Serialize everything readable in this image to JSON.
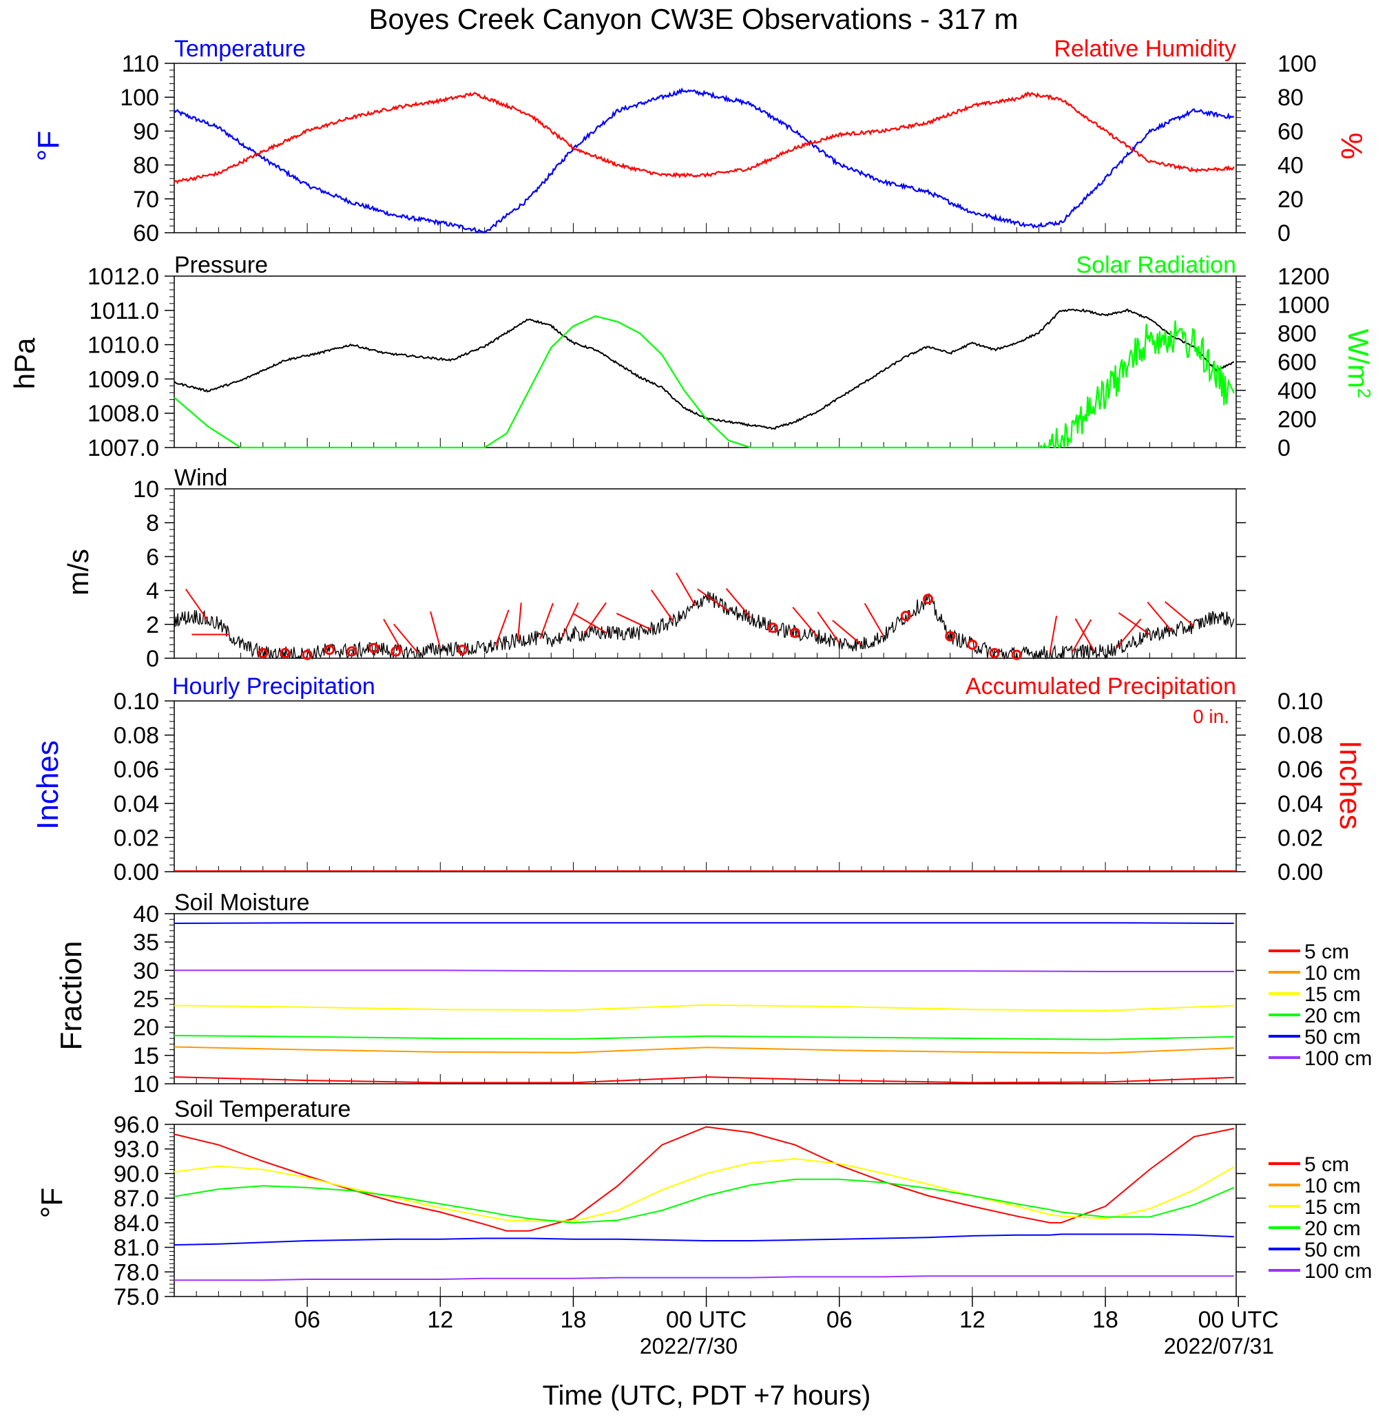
{
  "title": "Boyes Creek Canyon CW3E Observations - 317 m",
  "xaxis": {
    "label": "Time (UTC, PDT +7 hours)",
    "ticks": [
      "06",
      "12",
      "18",
      "00 UTC",
      "06",
      "12",
      "18",
      "00 UTC"
    ],
    "dates": [
      "2022/7/30",
      "2022/07/31"
    ]
  },
  "panels": {
    "temp_rh": {
      "left_title": "Temperature",
      "right_title": "Relative Humidity",
      "left_unit": "°F",
      "right_unit": "%",
      "left_ticks": [
        "110",
        "100",
        "90",
        "80",
        "70",
        "60"
      ],
      "right_ticks": [
        "100",
        "80",
        "60",
        "40",
        "20",
        "0"
      ]
    },
    "pressure_solar": {
      "left_title": "Pressure",
      "right_title": "Solar Radiation",
      "left_unit": "hPa",
      "right_unit": "W/m",
      "left_ticks": [
        "1012.0",
        "1011.0",
        "1010.0",
        "1009.0",
        "1008.0",
        "1007.0"
      ],
      "right_ticks": [
        "1200",
        "1000",
        "800",
        "600",
        "400",
        "200",
        "0"
      ]
    },
    "wind": {
      "title": "Wind",
      "unit": "m/s",
      "ticks": [
        "10",
        "8",
        "6",
        "4",
        "2",
        "0"
      ]
    },
    "precip": {
      "left_title": "Hourly Precipitation",
      "right_title": "Accumulated Precipitation",
      "total": "0 in.",
      "left_unit": "Inches",
      "right_unit": "Inches",
      "ticks": [
        "0.10",
        "0.08",
        "0.06",
        "0.04",
        "0.02",
        "0.00"
      ]
    },
    "soil_moisture": {
      "title": "Soil Moisture",
      "unit": "Fraction",
      "ticks": [
        "40",
        "35",
        "30",
        "25",
        "20",
        "15",
        "10"
      ],
      "legend": [
        "5 cm",
        "10 cm",
        "15 cm",
        "20 cm",
        "50 cm",
        "100 cm"
      ]
    },
    "soil_temp": {
      "title": "Soil Temperature",
      "unit": "°F",
      "ticks": [
        "96.0",
        "93.0",
        "90.0",
        "87.0",
        "84.0",
        "81.0",
        "78.0",
        "75.0"
      ],
      "legend": [
        "5 cm",
        "10 cm",
        "15 cm",
        "20 cm",
        "50 cm",
        "100 cm"
      ]
    }
  },
  "colors": {
    "temperature": "#0000ff",
    "humidity": "#ff0000",
    "pressure": "#000000",
    "solar": "#00ff00",
    "wind": "#000000",
    "barbs": "#ff0000",
    "soil": [
      "#ff0000",
      "#ff9900",
      "#ffff00",
      "#00ff00",
      "#0000ff",
      "#9933ff"
    ]
  },
  "chart_data": [
    {
      "type": "line",
      "x_hours_since_start": [
        0,
        2,
        4,
        6,
        8,
        10,
        12,
        13.5,
        14,
        16,
        18,
        20,
        22,
        23,
        24,
        26,
        28,
        30,
        32,
        34,
        36,
        38,
        38.5,
        40,
        42,
        44,
        46,
        47.8
      ],
      "series": [
        {
          "name": "Temperature",
          "axis": "left",
          "ylim": [
            60,
            110
          ],
          "values": [
            96,
            91,
            82,
            74,
            69,
            65,
            63,
            61,
            60,
            70,
            85,
            96,
            100,
            102,
            101,
            98,
            90,
            80,
            75,
            72,
            66,
            63,
            62,
            63,
            76,
            90,
            96,
            94
          ]
        },
        {
          "name": "Relative Humidity",
          "axis": "right",
          "ylim": [
            0,
            100
          ],
          "values": [
            30,
            35,
            48,
            60,
            68,
            74,
            78,
            82,
            80,
            70,
            50,
            40,
            34,
            34,
            34,
            38,
            50,
            58,
            60,
            65,
            75,
            79,
            82,
            79,
            60,
            42,
            37,
            38
          ]
        }
      ]
    },
    {
      "type": "line",
      "x_hours_since_start": [
        0,
        1.5,
        3,
        5,
        6.5,
        8,
        9.5,
        11,
        12.5,
        14,
        15,
        16,
        17,
        18,
        19,
        20,
        21,
        22,
        23,
        24,
        25,
        26,
        27,
        28,
        29,
        30,
        31,
        32,
        33,
        34,
        35,
        36,
        37,
        38,
        39,
        40,
        41,
        42,
        43,
        44,
        45,
        46,
        47,
        47.8
      ],
      "series": [
        {
          "name": "Pressure",
          "axis": "left",
          "ylim": [
            1007.0,
            1012.0
          ],
          "values": [
            1008.9,
            1008.65,
            1008.95,
            1009.55,
            1009.75,
            1010.0,
            1009.75,
            1009.65,
            1009.55,
            1009.95,
            1010.35,
            1010.75,
            1010.55,
            1010.05,
            1009.85,
            1009.45,
            1009.05,
            1008.75,
            1008.15,
            1007.85,
            1007.75,
            1007.65,
            1007.55,
            1007.75,
            1008.05,
            1008.45,
            1008.85,
            1009.25,
            1009.65,
            1009.95,
            1009.75,
            1010.05,
            1009.85,
            1010.05,
            1010.35,
            1011.0,
            1011.0,
            1010.85,
            1011.0,
            1010.75,
            1010.25,
            1009.95,
            1009.25,
            1009.5
          ]
        },
        {
          "name": "Solar Radiation",
          "axis": "right",
          "ylim": [
            0,
            1200
          ],
          "values": [
            350,
            150,
            0,
            0,
            0,
            0,
            0,
            0,
            0,
            0,
            100,
            400,
            700,
            850,
            920,
            880,
            800,
            650,
            400,
            200,
            50,
            0,
            0,
            0,
            0,
            0,
            0,
            0,
            0,
            0,
            0,
            0,
            0,
            0,
            0,
            200,
            350,
            500,
            700,
            900,
            900,
            850,
            650,
            380
          ]
        }
      ]
    },
    {
      "type": "line",
      "title": "Wind",
      "x_hours_since_start": [
        0,
        1,
        2,
        3,
        4,
        5,
        6,
        7,
        8,
        9,
        10,
        11,
        12,
        13,
        14,
        15,
        16,
        17,
        18,
        19,
        20,
        21,
        22,
        23,
        24,
        25,
        26,
        27,
        28,
        29,
        30,
        31,
        32,
        33,
        34,
        35,
        36,
        37,
        38,
        39,
        40,
        41,
        42,
        43,
        44,
        45,
        46,
        47,
        47.8
      ],
      "series": [
        {
          "name": "Wind speed",
          "values": [
            2.3,
            2.5,
            2.0,
            0.8,
            0.3,
            0.3,
            0.2,
            0.5,
            0.4,
            0.6,
            0.4,
            0.3,
            0.6,
            0.5,
            0.6,
            0.9,
            1.2,
            1.1,
            1.4,
            1.5,
            1.5,
            1.5,
            1.9,
            2.5,
            3.7,
            2.8,
            2.4,
            1.8,
            1.5,
            1.3,
            0.9,
            0.8,
            1.3,
            2.5,
            3.5,
            1.3,
            0.8,
            0.3,
            0.2,
            0.3,
            0.3,
            0.4,
            0.4,
            0.8,
            1.4,
            1.6,
            1.9,
            2.5,
            2.2
          ]
        }
      ],
      "ylim": [
        0,
        10
      ]
    },
    {
      "type": "line",
      "title": "Precipitation",
      "series": [
        {
          "name": "Hourly Precipitation",
          "values": [
            0,
            0
          ]
        },
        {
          "name": "Accumulated Precipitation",
          "values": [
            0,
            0
          ]
        }
      ],
      "ylim": [
        0,
        0.1
      ]
    },
    {
      "type": "line",
      "title": "Soil Moisture",
      "x_hours_since_start": [
        0,
        6,
        12,
        18,
        24,
        30,
        36,
        42,
        47.8
      ],
      "series": [
        {
          "name": "5 cm",
          "values": [
            11.2,
            10.6,
            10.2,
            10.2,
            11.2,
            10.6,
            10.2,
            10.3,
            11.1
          ]
        },
        {
          "name": "10 cm",
          "values": [
            16.5,
            16.0,
            15.6,
            15.5,
            16.4,
            15.9,
            15.6,
            15.4,
            16.3
          ]
        },
        {
          "name": "15 cm",
          "values": [
            23.8,
            23.5,
            23.1,
            23.0,
            23.9,
            23.6,
            23.1,
            22.9,
            23.8
          ]
        },
        {
          "name": "20 cm",
          "values": [
            18.5,
            18.3,
            18.0,
            17.9,
            18.4,
            18.2,
            18.0,
            17.8,
            18.3
          ]
        },
        {
          "name": "50 cm",
          "values": [
            38.3,
            38.4,
            38.4,
            38.4,
            38.4,
            38.4,
            38.4,
            38.4,
            38.3
          ]
        },
        {
          "name": "100 cm",
          "values": [
            30.0,
            30.0,
            30.0,
            29.9,
            29.9,
            29.9,
            29.9,
            29.8,
            29.8
          ]
        }
      ],
      "ylim": [
        10,
        40
      ]
    },
    {
      "type": "line",
      "title": "Soil Temperature",
      "x_hours_since_start": [
        0,
        2,
        4,
        6,
        8,
        10,
        12,
        14,
        15,
        16,
        18,
        20,
        22,
        24,
        26,
        28,
        30,
        32,
        34,
        36,
        38,
        39.5,
        40,
        42,
        44,
        46,
        47.8
      ],
      "series": [
        {
          "name": "5 cm",
          "values": [
            94.8,
            93.5,
            91.5,
            89.7,
            88.0,
            86.5,
            85.3,
            83.8,
            83.0,
            83.0,
            84.5,
            88.5,
            93.5,
            95.7,
            95.0,
            93.5,
            91.0,
            89.0,
            87.3,
            86.0,
            84.8,
            84.0,
            84.0,
            86.0,
            90.5,
            94.5,
            95.5
          ]
        },
        {
          "name": "10 cm",
          "values": []
        },
        {
          "name": "15 cm",
          "values": [
            90.2,
            90.9,
            90.5,
            89.5,
            88.2,
            87.0,
            85.8,
            84.8,
            84.3,
            84.2,
            84.2,
            85.5,
            88.0,
            90.0,
            91.3,
            91.8,
            91.2,
            90.0,
            88.7,
            87.3,
            86.0,
            85.0,
            84.8,
            84.5,
            85.7,
            88.0,
            90.8
          ]
        },
        {
          "name": "20 cm",
          "values": [
            87.2,
            88.1,
            88.5,
            88.3,
            87.9,
            87.2,
            86.3,
            85.4,
            84.9,
            84.5,
            84.0,
            84.3,
            85.5,
            87.3,
            88.6,
            89.3,
            89.3,
            88.9,
            88.2,
            87.3,
            86.3,
            85.6,
            85.3,
            84.7,
            84.7,
            86.2,
            88.3
          ]
        },
        {
          "name": "50 cm",
          "values": [
            81.3,
            81.4,
            81.6,
            81.8,
            81.9,
            82.0,
            82.0,
            82.1,
            82.1,
            82.1,
            82.0,
            82.0,
            81.9,
            81.8,
            81.8,
            81.9,
            82.0,
            82.1,
            82.2,
            82.4,
            82.5,
            82.5,
            82.6,
            82.6,
            82.6,
            82.5,
            82.3
          ]
        },
        {
          "name": "100 cm",
          "values": [
            77.0,
            77.0,
            77.0,
            77.1,
            77.1,
            77.1,
            77.1,
            77.2,
            77.2,
            77.2,
            77.2,
            77.3,
            77.3,
            77.3,
            77.3,
            77.4,
            77.4,
            77.4,
            77.5,
            77.5,
            77.5,
            77.5,
            77.5,
            77.5,
            77.5,
            77.5,
            77.5
          ]
        }
      ],
      "ylim": [
        75,
        96
      ]
    }
  ]
}
